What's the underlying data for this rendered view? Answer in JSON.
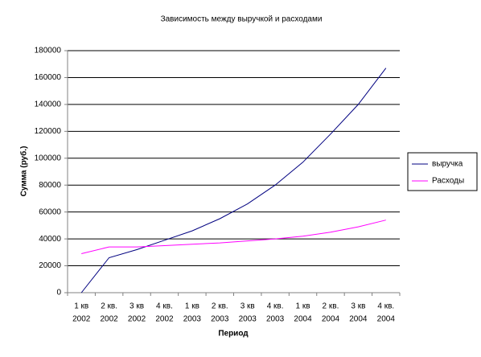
{
  "chart_data": {
    "type": "line",
    "title": "Зависимость между выручкой и расходами",
    "x_label": "Период",
    "y_label": "Сумма (руб.)",
    "categories": [
      [
        "1 кв",
        "2002"
      ],
      [
        "2 кв.",
        "2002"
      ],
      [
        "3 кв",
        "2002"
      ],
      [
        "4 кв.",
        "2002"
      ],
      [
        "1 кв",
        "2003"
      ],
      [
        "2 кв.",
        "2003"
      ],
      [
        "3 кв",
        "2003"
      ],
      [
        "4 кв.",
        "2003"
      ],
      [
        "1 кв",
        "2004"
      ],
      [
        "2 кв.",
        "2004"
      ],
      [
        "3 кв",
        "2004"
      ],
      [
        "4 кв.",
        "2004"
      ]
    ],
    "series": [
      {
        "name": "выручка",
        "color": "#000080",
        "values": [
          0,
          26000,
          32000,
          39000,
          46000,
          55000,
          66000,
          80000,
          97000,
          118000,
          140000,
          167000
        ]
      },
      {
        "name": "Расходы",
        "color": "#ff00ff",
        "values": [
          29000,
          34000,
          34000,
          35000,
          36000,
          37000,
          38500,
          40000,
          42000,
          45000,
          49000,
          54000
        ]
      }
    ],
    "ylim": [
      0,
      180000
    ],
    "yticks": [
      0,
      20000,
      40000,
      60000,
      80000,
      100000,
      120000,
      140000,
      160000,
      180000
    ],
    "grid": true,
    "legend": "right"
  }
}
